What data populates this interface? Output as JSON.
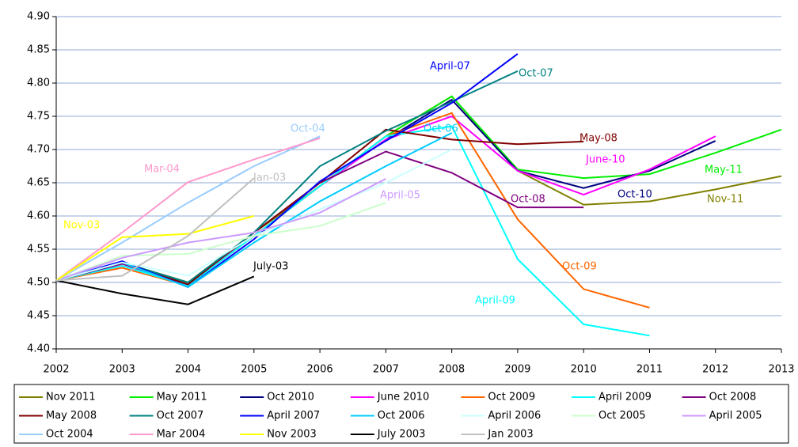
{
  "chart_data": {
    "type": "line",
    "x": [
      2002,
      2003,
      2004,
      2005,
      2006,
      2007,
      2008,
      2009,
      2010,
      2011,
      2012,
      2013
    ],
    "xlim": [
      2002,
      2013
    ],
    "xticks": [
      2002,
      2003,
      2004,
      2005,
      2006,
      2007,
      2008,
      2009,
      2010,
      2011,
      2012,
      2013
    ],
    "ylim": [
      4.4,
      4.9
    ],
    "yticks": [
      {
        "value": 4.4,
        "label": "4.40"
      },
      {
        "value": 4.45,
        "label": "4.45"
      },
      {
        "value": 4.5,
        "label": "4.50"
      },
      {
        "value": 4.55,
        "label": "4.55"
      },
      {
        "value": 4.6,
        "label": "4.60"
      },
      {
        "value": 4.65,
        "label": "4.65"
      },
      {
        "value": 4.7,
        "label": "4.70"
      },
      {
        "value": 4.75,
        "label": "4.75"
      },
      {
        "value": 4.8,
        "label": "4.80"
      },
      {
        "value": 4.85,
        "label": "4.85"
      },
      {
        "value": 4.9,
        "label": "4.90"
      }
    ],
    "grid": true,
    "legend": "bottom",
    "series": [
      {
        "name": "Nov 2011",
        "label": "Nov-11",
        "color": "#808000",
        "values": [
          4.503,
          4.53,
          4.5,
          4.575,
          4.645,
          4.72,
          4.78,
          4.668,
          4.617,
          4.622,
          4.64,
          4.66
        ]
      },
      {
        "name": "May 2011",
        "label": "May-11",
        "color": "#00ee00",
        "values": [
          4.503,
          4.53,
          4.5,
          4.57,
          4.645,
          4.72,
          4.78,
          4.67,
          4.657,
          4.663,
          4.695,
          4.73
        ]
      },
      {
        "name": "Oct 2010",
        "label": "Oct-10",
        "color": "#000080",
        "values": [
          4.503,
          4.53,
          4.497,
          4.57,
          4.645,
          4.715,
          4.775,
          4.668,
          4.642,
          4.668,
          4.713,
          null
        ]
      },
      {
        "name": "June 2010",
        "label": "June-10",
        "color": "#ff00ff",
        "values": [
          4.503,
          4.525,
          4.497,
          4.57,
          4.645,
          4.715,
          4.75,
          4.668,
          4.632,
          4.67,
          4.72,
          null
        ]
      },
      {
        "name": "Oct 2009",
        "label": "Oct-09",
        "color": "#ff6600",
        "values": [
          4.503,
          4.522,
          4.495,
          4.57,
          4.645,
          4.72,
          4.755,
          4.595,
          4.49,
          4.462,
          null,
          null
        ]
      },
      {
        "name": "April 2009",
        "label": "April-09",
        "color": "#00ffff",
        "values": [
          4.503,
          4.525,
          4.495,
          4.57,
          4.645,
          4.72,
          4.735,
          4.535,
          4.437,
          4.42,
          null,
          null
        ]
      },
      {
        "name": "Oct 2008",
        "label": "Oct-08",
        "color": "#800080",
        "values": [
          4.503,
          4.528,
          4.497,
          4.575,
          4.65,
          4.697,
          4.665,
          4.613,
          4.613,
          null,
          null,
          null
        ]
      },
      {
        "name": "May 2008",
        "label": "May-08",
        "color": "#800000",
        "values": [
          4.503,
          4.53,
          4.497,
          4.575,
          4.65,
          4.73,
          4.715,
          4.708,
          4.712,
          null,
          null,
          null
        ]
      },
      {
        "name": "Oct 2007",
        "label": "Oct-07",
        "color": "#008080",
        "values": [
          4.503,
          4.53,
          4.5,
          4.575,
          4.675,
          4.728,
          4.772,
          4.818,
          null,
          null,
          null,
          null
        ]
      },
      {
        "name": "April 2007",
        "label": "April-07",
        "color": "#0000ff",
        "values": [
          4.503,
          4.532,
          4.493,
          4.565,
          4.652,
          4.713,
          4.77,
          4.844,
          null,
          null,
          null,
          null
        ]
      },
      {
        "name": "Oct 2006",
        "label": "Oct-06",
        "color": "#00ccff",
        "values": [
          4.503,
          4.53,
          4.493,
          4.56,
          4.622,
          4.675,
          4.725,
          null,
          null,
          null,
          null,
          null
        ]
      },
      {
        "name": "April 2006",
        "color": "#ccffff",
        "values": [
          4.503,
          4.53,
          4.51,
          4.57,
          4.61,
          4.65,
          4.7,
          null,
          null,
          null,
          null,
          null
        ]
      },
      {
        "name": "Oct 2005",
        "color": "#ccffcc",
        "values": [
          4.503,
          4.54,
          4.543,
          4.57,
          4.585,
          4.62,
          null,
          null,
          null,
          null,
          null,
          null
        ]
      },
      {
        "name": "April 2005",
        "label": "April-05",
        "color": "#cc99ff",
        "values": [
          4.503,
          4.537,
          4.56,
          4.575,
          4.605,
          4.656,
          null,
          null,
          null,
          null,
          null,
          null
        ]
      },
      {
        "name": "Oct 2004",
        "label": "Oct-04",
        "color": "#99ccff",
        "values": [
          4.503,
          4.56,
          4.62,
          4.675,
          4.72,
          null,
          null,
          null,
          null,
          null,
          null,
          null
        ]
      },
      {
        "name": "Mar 2004",
        "label": "Mar-04",
        "color": "#ff99cc",
        "values": [
          4.503,
          4.575,
          4.651,
          4.685,
          4.717,
          null,
          null,
          null,
          null,
          null,
          null,
          null
        ]
      },
      {
        "name": "Nov 2003",
        "label": "Nov-03",
        "color": "#ffff00",
        "values": [
          4.503,
          4.568,
          4.573,
          4.6,
          null,
          null,
          null,
          null,
          null,
          null,
          null,
          null
        ]
      },
      {
        "name": "July 2003",
        "label": "July-03",
        "color": "#000000",
        "values": [
          4.503,
          4.483,
          4.467,
          4.509,
          null,
          null,
          null,
          null,
          null,
          null,
          null,
          null
        ]
      },
      {
        "name": "Jan 2003",
        "label": "Jan-03",
        "color": "#c0c0c0",
        "values": [
          4.503,
          4.51,
          4.57,
          4.657,
          null,
          null,
          null,
          null,
          null,
          null,
          null,
          null
        ]
      }
    ]
  }
}
